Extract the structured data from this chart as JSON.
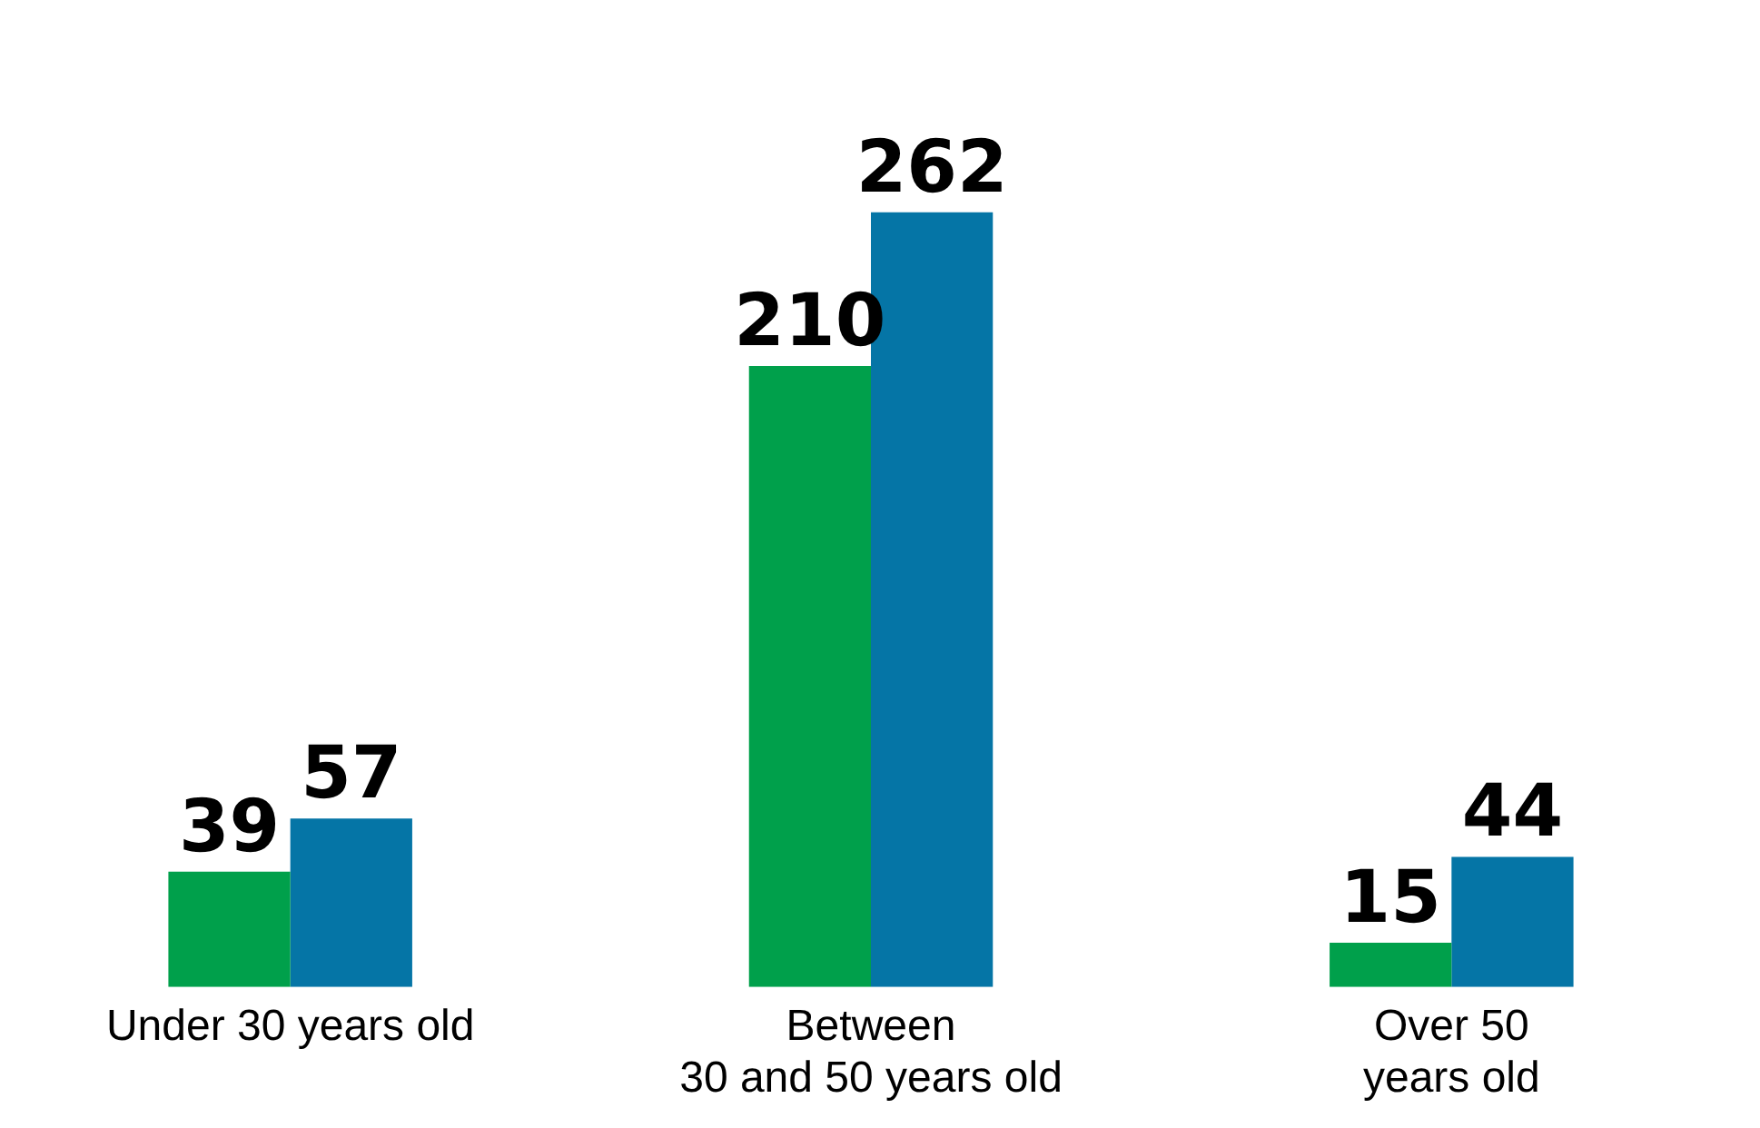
{
  "chart_data": {
    "type": "bar",
    "categories": [
      "Under 30 years old",
      "Between\n30 and 50 years old",
      "Over 50\nyears old"
    ],
    "series": [
      {
        "color": "#00a04b",
        "values": [
          39,
          210,
          15
        ]
      },
      {
        "color": "#0575a6",
        "values": [
          57,
          262,
          44
        ]
      }
    ],
    "data_labels": true,
    "grid": false,
    "legend": false
  }
}
